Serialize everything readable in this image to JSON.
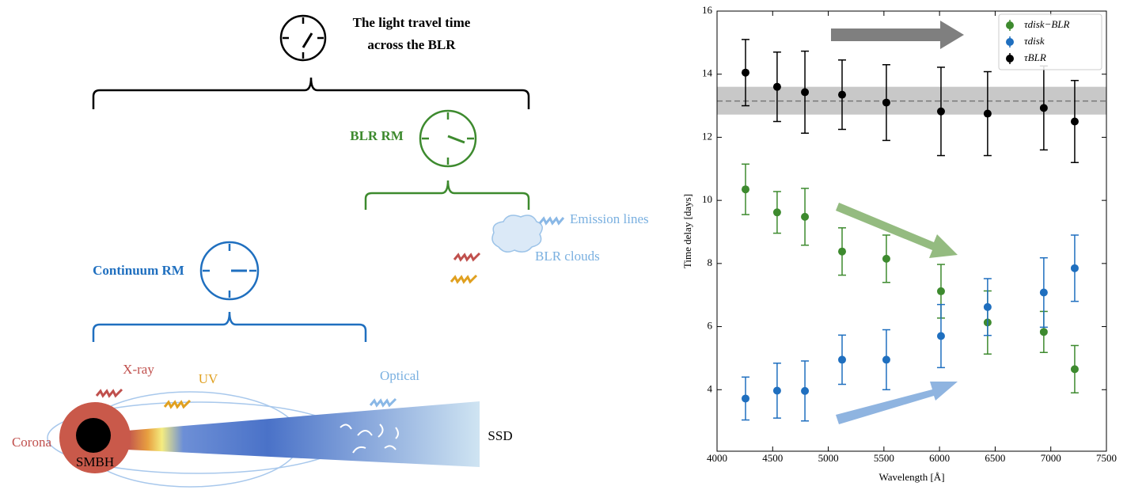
{
  "diagram": {
    "title_lines": [
      "The light travel time",
      "across the BLR"
    ],
    "blr_rm": "BLR RM",
    "emission_lines": "Emission lines",
    "blr_clouds": "BLR clouds",
    "continuum_rm": "Continuum RM",
    "xray": "X-ray",
    "uv": "UV",
    "optical": "Optical",
    "corona": "Corona",
    "smbh": "SMBH",
    "ssd": "SSD"
  },
  "chart_data": {
    "type": "errorbar",
    "xlabel": "Wavelength [Å]",
    "ylabel": "Time delay [days]",
    "x": [
      4256,
      4540,
      4790,
      5124,
      5522,
      6013,
      6432,
      6937,
      7215
    ],
    "series": [
      {
        "name": "τdisk−BLR",
        "color": "#3d8a2e",
        "values": [
          10.35,
          9.62,
          9.48,
          8.38,
          8.15,
          7.12,
          6.13,
          5.83,
          4.65
        ],
        "errors": [
          0.8,
          0.66,
          0.9,
          0.75,
          0.75,
          0.85,
          1.0,
          0.65,
          0.75
        ]
      },
      {
        "name": "τdisk",
        "color": "#1f6fbf",
        "values": [
          3.72,
          3.97,
          3.96,
          4.95,
          4.95,
          5.7,
          6.62,
          7.08,
          7.85
        ],
        "errors": [
          0.68,
          0.87,
          0.95,
          0.78,
          0.95,
          1.0,
          0.9,
          1.1,
          1.05
        ]
      },
      {
        "name": "τBLR",
        "color": "#000000",
        "values": [
          14.05,
          13.6,
          13.43,
          13.35,
          13.1,
          12.82,
          12.75,
          12.93,
          12.5
        ],
        "errors": [
          1.05,
          1.1,
          1.3,
          1.1,
          1.2,
          1.4,
          1.33,
          1.33,
          1.3
        ]
      }
    ],
    "band": {
      "low": 12.72,
      "high": 13.6,
      "mean": 13.15,
      "color": "#c8c8c8"
    },
    "xlim": [
      4000,
      7500
    ],
    "ylim": [
      2.05,
      16
    ],
    "xticks": [
      4000,
      4500,
      5000,
      5500,
      6000,
      6500,
      7000,
      7500
    ],
    "yticks": [
      4,
      6,
      8,
      10,
      12,
      14,
      16
    ],
    "legend": "upper right"
  }
}
